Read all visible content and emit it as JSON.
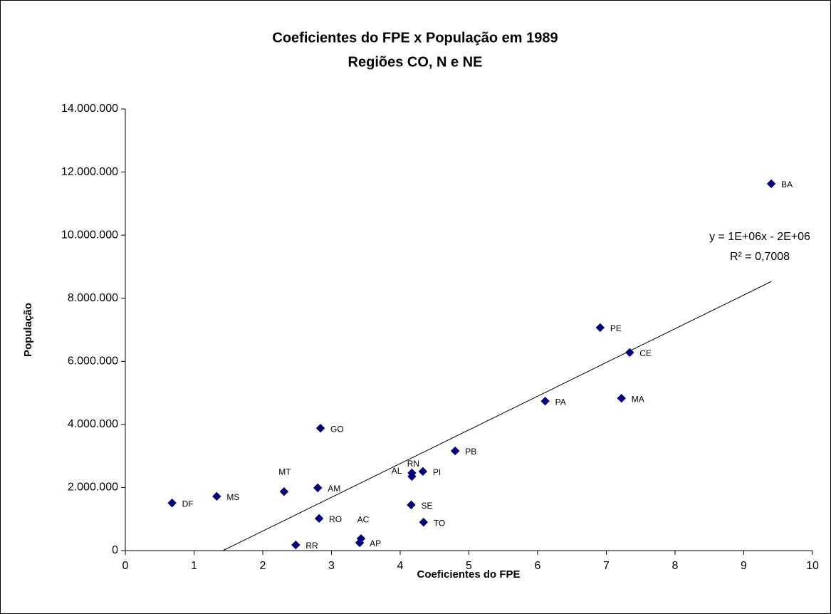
{
  "chart_data": {
    "type": "scatter",
    "title": "Coeficientes do FPE x População em 1989",
    "subtitle": "Regiões CO, N e NE",
    "x_label": "Coeficientes do FPE",
    "y_label": "População",
    "color": "#000080",
    "labels": [
      "BA",
      "PE",
      "CE",
      "MA",
      "PA",
      "GO",
      "PB",
      "PI",
      "AL",
      "RN",
      "AM",
      "MT",
      "MS",
      "DF",
      "SE",
      "RO",
      "TO",
      "AC",
      "AP",
      "RR"
    ],
    "x": [
      9.4,
      6.91,
      7.34,
      7.22,
      6.11,
      2.84,
      4.8,
      4.33,
      4.17,
      4.17,
      2.8,
      2.31,
      1.33,
      0.68,
      4.16,
      2.82,
      4.34,
      3.43,
      3.41,
      2.48
    ],
    "values": [
      11630000,
      7070000,
      6280000,
      4830000,
      4740000,
      3880000,
      3160000,
      2510000,
      2460000,
      2350000,
      1990000,
      1870000,
      1720000,
      1510000,
      1450000,
      1020000,
      900000,
      380000,
      250000,
      180000
    ],
    "trendline": {
      "x": [
        1.42,
        9.4
      ],
      "y": [
        0,
        8530000
      ],
      "equation": "y = 1E+06x - 2E+06",
      "r2": "R² = 0,7008"
    },
    "xlim": [
      0,
      10
    ],
    "xticks": [
      0,
      1,
      2,
      3,
      4,
      5,
      6,
      7,
      8,
      9,
      10
    ],
    "ylim": [
      0,
      14000000
    ],
    "yticks": [
      {
        "value": 0,
        "label": "0"
      },
      {
        "value": 2000000,
        "label": "2.000.000"
      },
      {
        "value": 4000000,
        "label": "4.000.000"
      },
      {
        "value": 6000000,
        "label": "6.000.000"
      },
      {
        "value": 8000000,
        "label": "8.000.000"
      },
      {
        "value": 10000000,
        "label": "10.000.000"
      },
      {
        "value": 12000000,
        "label": "12.000.000"
      },
      {
        "value": 14000000,
        "label": "14.000.000"
      }
    ]
  }
}
